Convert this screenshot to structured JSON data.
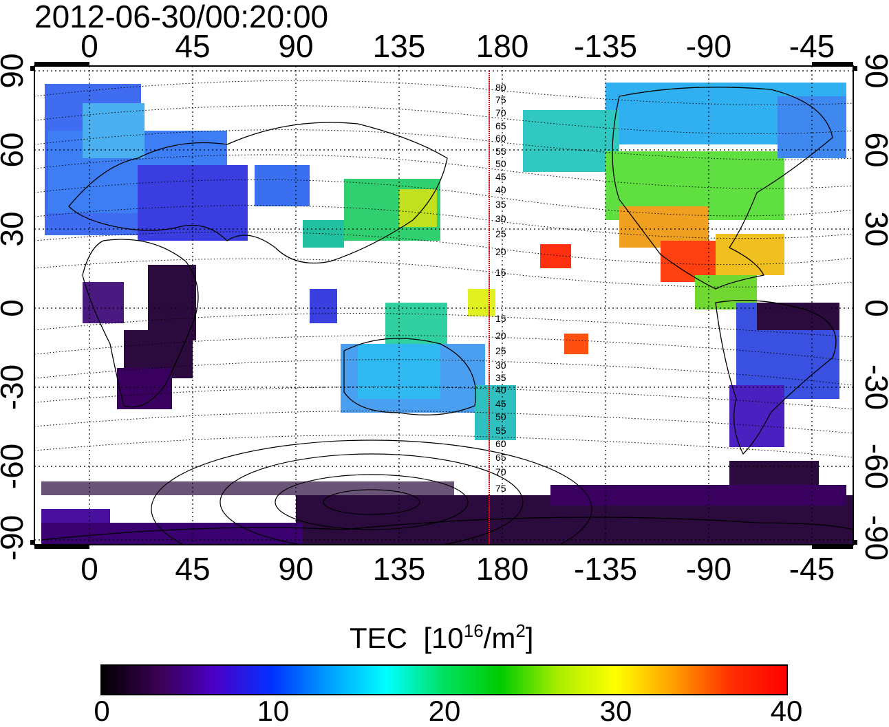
{
  "timestamp": "2012-06-30/00:20:00",
  "map": {
    "top_lon_ticks": [
      "0",
      "45",
      "90",
      "135",
      "180",
      "-135",
      "-90",
      "-45"
    ],
    "bottom_lon_ticks": [
      "0",
      "45",
      "90",
      "135",
      "180",
      "-135",
      "-90",
      "-45"
    ],
    "left_lat_ticks": [
      "90",
      "60",
      "30",
      "0",
      "-30",
      "-60",
      "-90"
    ],
    "right_lat_ticks": [
      "90",
      "60",
      "30",
      "0",
      "-30",
      "-60",
      "-90"
    ],
    "magnetic_latitude_labels": [
      "80",
      "75",
      "70",
      "65",
      "60",
      "55",
      "50",
      "45",
      "40",
      "35",
      "30",
      "25",
      "20",
      "15",
      "15",
      "20",
      "25",
      "30",
      "35",
      "40",
      "45",
      "50",
      "55",
      "60",
      "65",
      "70",
      "75"
    ],
    "meridian_line_color": "#e00000"
  },
  "colorbar": {
    "title": "TEC",
    "unit_prefix": "[10",
    "unit_exp": "16",
    "unit_mid": "/m",
    "unit_exp2": "2",
    "unit_suffix": "]",
    "ticks": [
      "0",
      "10",
      "20",
      "30",
      "40"
    ],
    "min": 0,
    "max": 40,
    "colors": [
      "#000000",
      "#3a0050",
      "#4a00c8",
      "#0033ff",
      "#00a0ff",
      "#00ffff",
      "#00e060",
      "#00cc00",
      "#aaee00",
      "#ffff00",
      "#ffa000",
      "#ff3000",
      "#ff0000"
    ]
  }
}
